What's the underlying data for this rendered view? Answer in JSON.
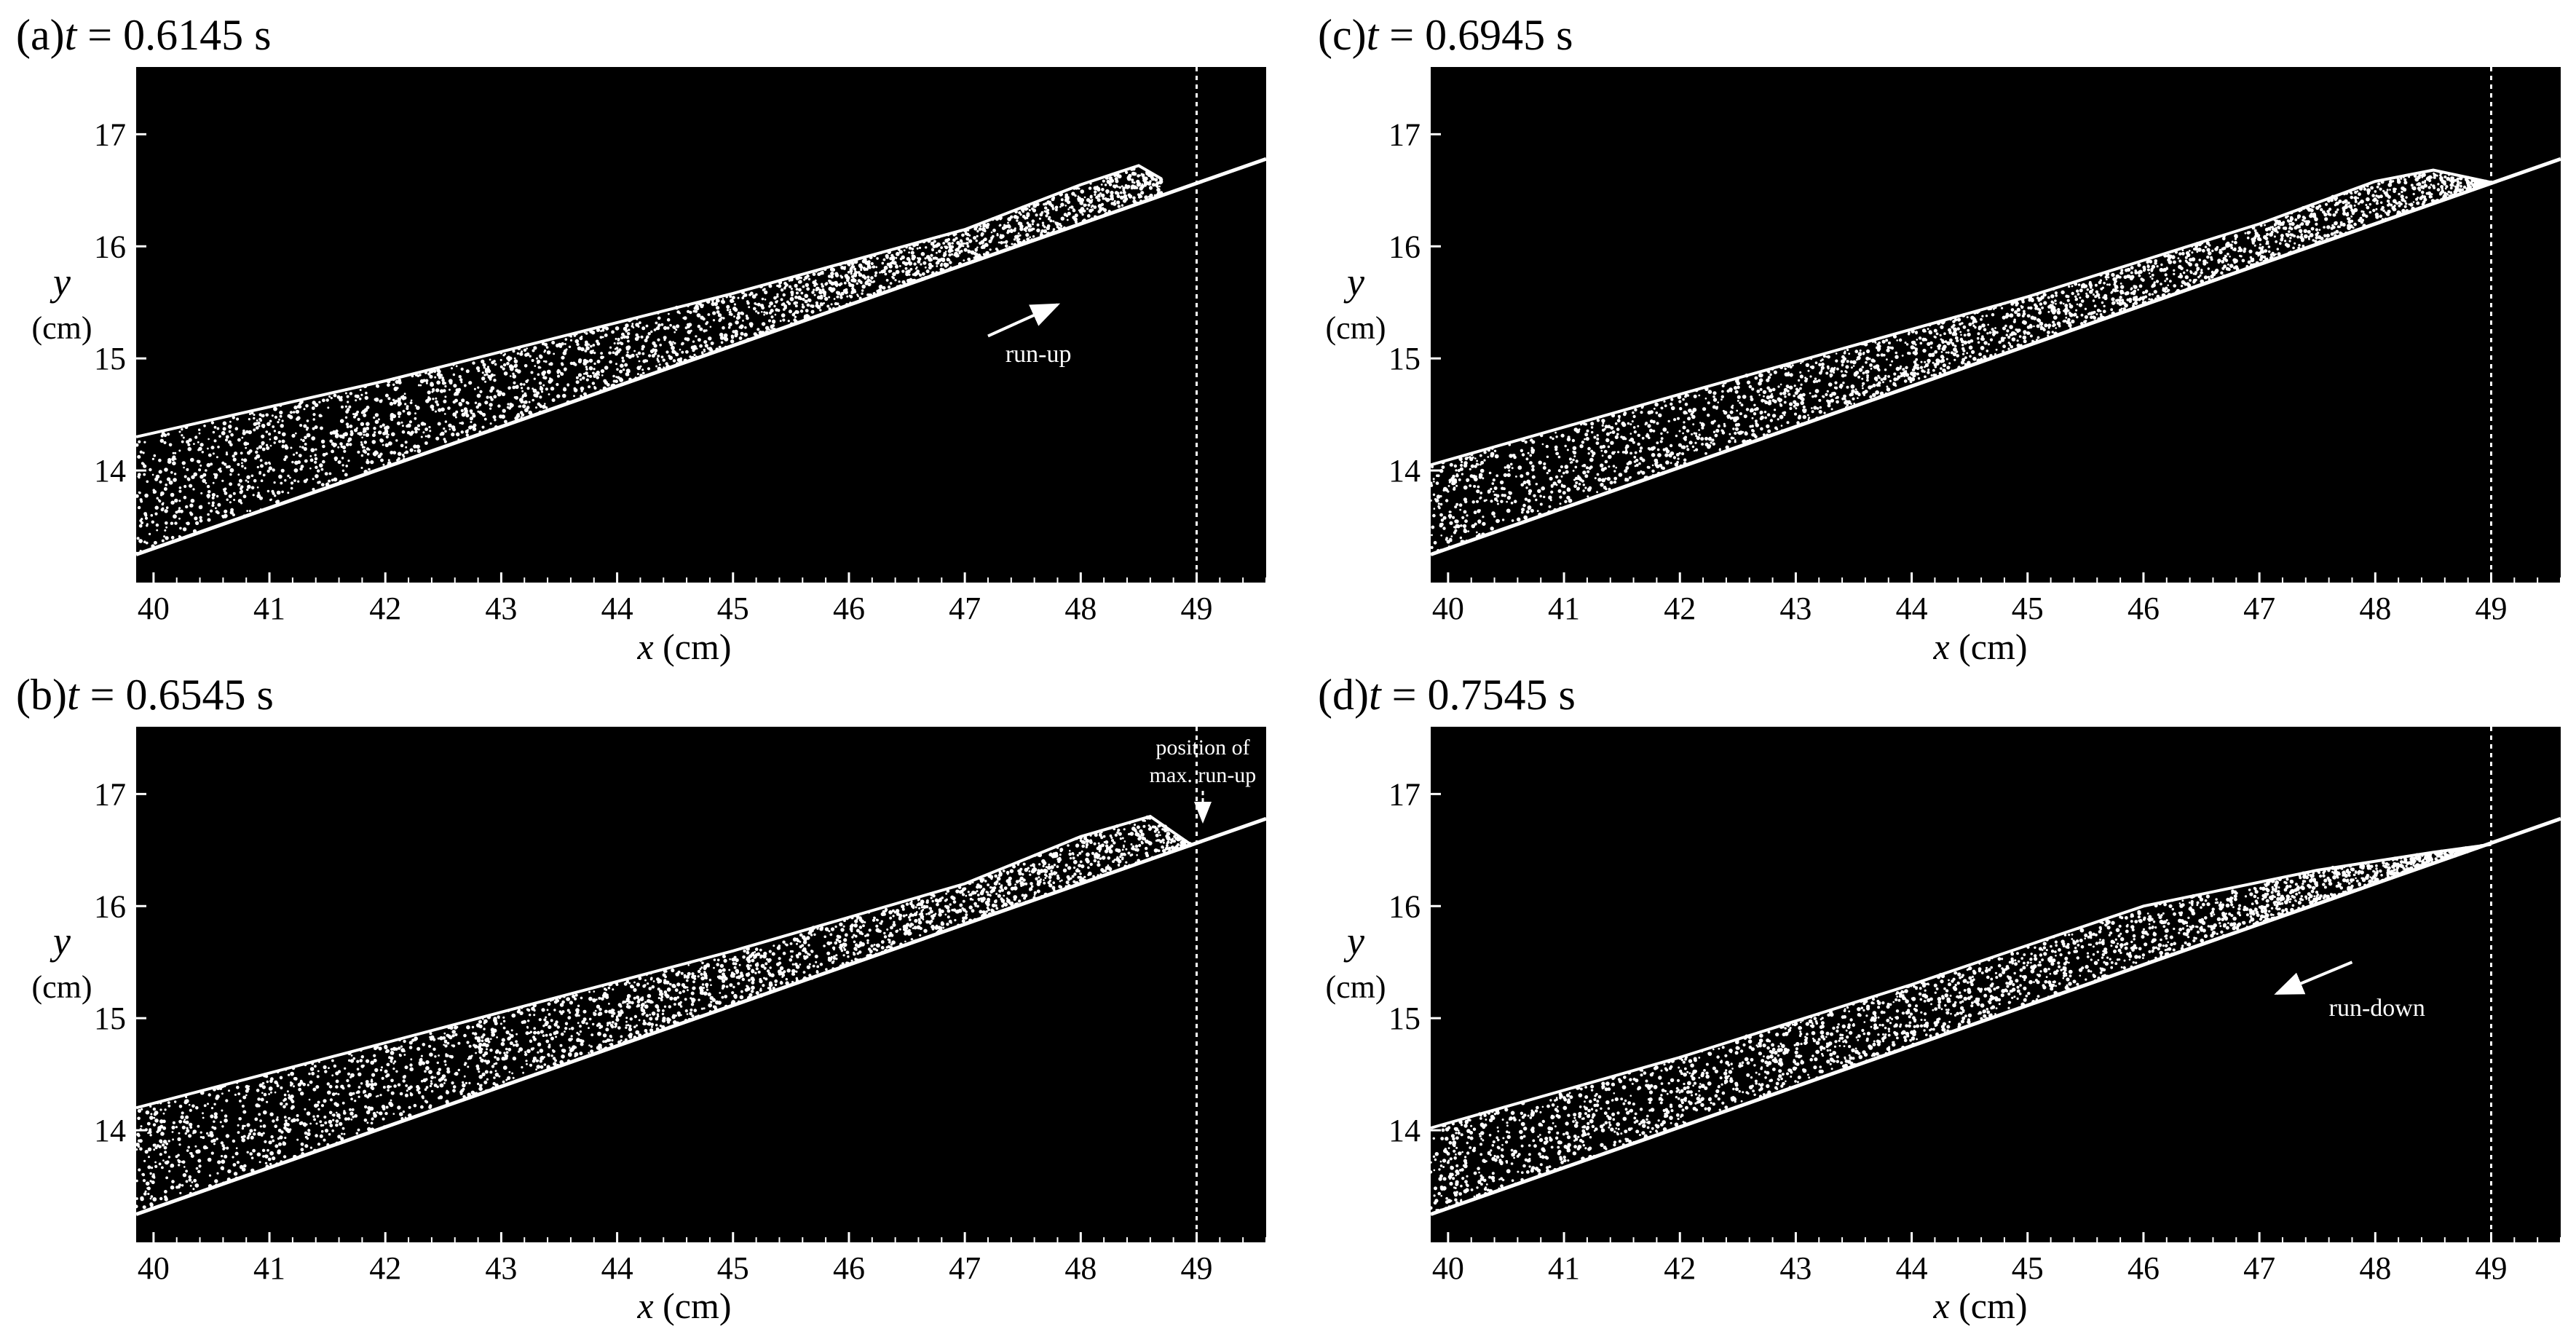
{
  "figure": {
    "background_color": "#ffffff",
    "plot_background": "#000000",
    "particle_color": "#ffffff",
    "marker_line_color": "#ffffff",
    "axes": {
      "xlabel_var": "x",
      "xlabel_unit": " (cm)",
      "ylabel_var": "y",
      "ylabel_unit": "(cm)",
      "xlim": [
        39.85,
        49.6
      ],
      "ylim": [
        13.0,
        17.6
      ],
      "xticks": [
        "40",
        "41",
        "42",
        "43",
        "44",
        "45",
        "46",
        "47",
        "48",
        "49"
      ],
      "yticks": [
        "14",
        "15",
        "16",
        "17"
      ]
    },
    "max_runup_x": 49.0,
    "annotations": {
      "runup": "run-up",
      "rundown": "run-down",
      "position_line1": "position of",
      "position_line2": "max. run-up"
    }
  },
  "chart_data": [
    {
      "type": "scatter",
      "panel_letter": "(a)",
      "time_var": "t",
      "time_value": " = 0.6145 s",
      "grid": false,
      "slope_line": {
        "x": [
          39.85,
          49.6
        ],
        "y": [
          13.25,
          16.78
        ]
      },
      "free_surface": {
        "x": [
          39.85,
          42.0,
          45.0,
          47.0,
          48.0,
          48.5,
          48.7
        ],
        "y": [
          14.3,
          14.8,
          15.58,
          16.15,
          16.55,
          16.72,
          16.6
        ]
      },
      "arrow": {
        "from": [
          47.2,
          15.2
        ],
        "to": [
          47.8,
          15.48
        ],
        "label": "run-up",
        "label_pos": [
          47.35,
          14.97
        ]
      },
      "max_runup_marker": false
    },
    {
      "type": "scatter",
      "panel_letter": "(b)",
      "time_var": "t",
      "time_value": " = 0.6545 s",
      "grid": false,
      "slope_line": {
        "x": [
          39.85,
          49.6
        ],
        "y": [
          13.25,
          16.78
        ]
      },
      "free_surface": {
        "x": [
          39.85,
          42.0,
          45.0,
          47.0,
          48.0,
          48.6,
          48.95
        ],
        "y": [
          14.2,
          14.78,
          15.6,
          16.2,
          16.62,
          16.8,
          16.55
        ]
      },
      "arrow": null,
      "max_runup_marker": true
    },
    {
      "type": "scatter",
      "panel_letter": "(c)",
      "time_var": "t",
      "time_value": " = 0.6945 s",
      "grid": false,
      "slope_line": {
        "x": [
          39.85,
          49.6
        ],
        "y": [
          13.25,
          16.78
        ]
      },
      "free_surface": {
        "x": [
          39.85,
          42.0,
          45.0,
          47.0,
          48.0,
          48.5,
          49.0
        ],
        "y": [
          14.05,
          14.68,
          15.55,
          16.2,
          16.58,
          16.68,
          16.57
        ]
      },
      "arrow": null,
      "max_runup_marker": false
    },
    {
      "type": "scatter",
      "panel_letter": "(d)",
      "time_var": "t",
      "time_value": " = 0.7545 s",
      "grid": false,
      "slope_line": {
        "x": [
          39.85,
          49.6
        ],
        "y": [
          13.25,
          16.78
        ]
      },
      "free_surface": {
        "x": [
          39.85,
          42.0,
          44.0,
          46.0,
          47.5,
          48.5,
          49.0
        ],
        "y": [
          14.02,
          14.65,
          15.3,
          16.0,
          16.32,
          16.48,
          16.55
        ]
      },
      "arrow": {
        "from": [
          47.8,
          15.5
        ],
        "to": [
          47.15,
          15.22
        ],
        "label": "run-down",
        "label_pos": [
          47.6,
          15.02
        ]
      },
      "max_runup_marker": false
    }
  ]
}
